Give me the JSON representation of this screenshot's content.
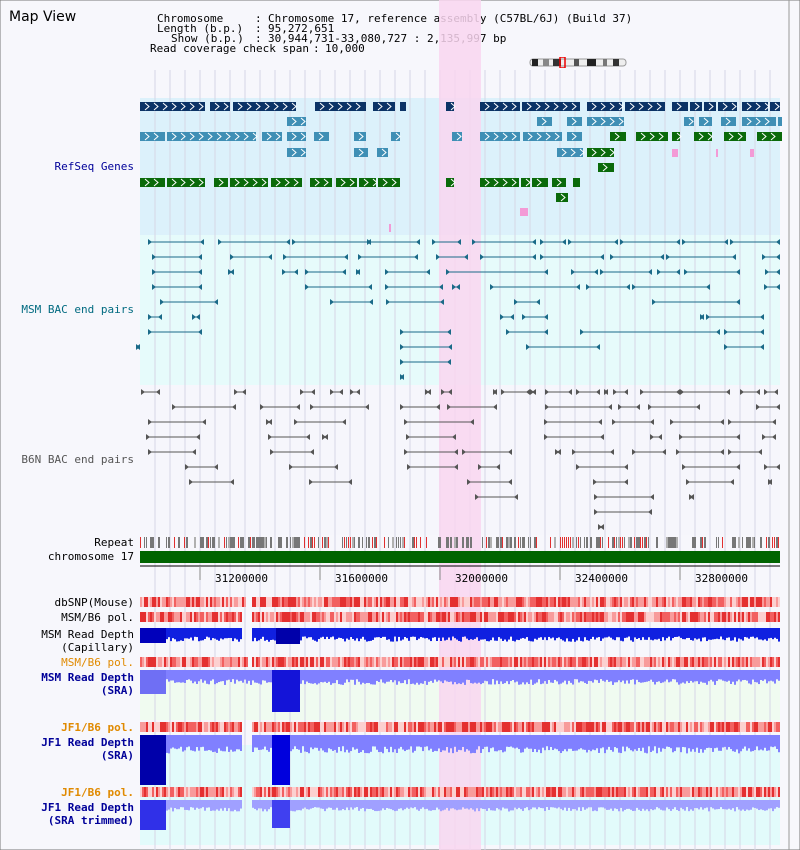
{
  "panel_title": "Map View",
  "info": {
    "chromosome_label": "Chromosome",
    "chromosome_value": "Chromosome 17, reference assembly (C57BL/6J) (Build 37)",
    "length_label": "Length (b.p.)",
    "length_value": "95,272,651",
    "show_label": "Show (b.p.)",
    "show_value": "30,944,731-33,080,727 : 2,135,997 bp",
    "span_label": "Read coverage check span",
    "span_value": "10,000"
  },
  "tracks": {
    "refseq": "RefSeq Genes",
    "msm_bac": "MSM BAC end pairs",
    "b6n_bac": "B6N BAC end pairs",
    "repeat": "Repeat",
    "chromosome": "chromosome 17",
    "dbsnp": "dbSNP(Mouse)",
    "msm_b6_pol_1": "MSM/B6 pol.",
    "msm_read_depth_cap": "MSM Read Depth\n(Capillary)",
    "msm_b6_pol_2": "MSM/B6 pol.",
    "msm_read_depth_sra": "MSM Read Depth\n(SRA)",
    "jf1_b6_pol_1": "JF1/B6 pol.",
    "jf1_read_depth_sra": "JF1 Read Depth\n(SRA)",
    "jf1_b6_pol_2": "JF1/B6 pol.",
    "jf1_read_depth_trim": "JF1 Read Depth\n(SRA trimmed)"
  },
  "axis_ticks": [
    "31200000",
    "31600000",
    "32000000",
    "32400000",
    "32800000"
  ],
  "colors": {
    "highlight": "#f9d6f0",
    "gene_dark": "#0b3366",
    "gene_mid": "#3f8fb5",
    "gene_green": "#0a6a0a",
    "msm_line": "#1a6a88",
    "b6n_line": "#555555",
    "chrom_bar": "#006400",
    "depth_dark": "#0000cc",
    "depth_light": "#8080ff",
    "label_blue": "#000099",
    "label_orange": "#e08a00",
    "label_teal": "#006a80"
  }
}
